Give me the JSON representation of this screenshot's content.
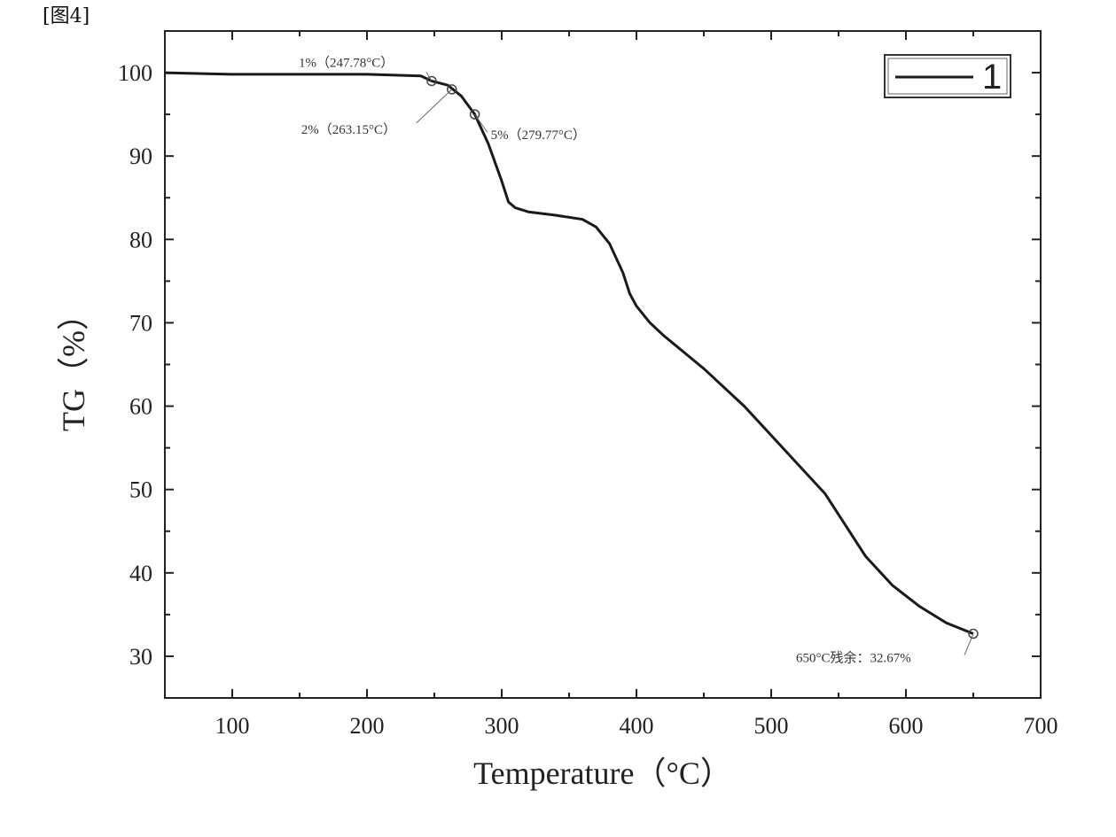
{
  "figure_label": "[图4]",
  "chart_data": {
    "type": "line",
    "title": "",
    "xlabel": "Temperature（°C）",
    "ylabel": "TG（%）",
    "xlim": [
      50,
      700
    ],
    "ylim": [
      25,
      105
    ],
    "xticks": [
      100,
      200,
      300,
      400,
      500,
      600,
      700
    ],
    "yticks": [
      30,
      40,
      50,
      60,
      70,
      80,
      90,
      100
    ],
    "grid": false,
    "legend_position": "top-right",
    "series": [
      {
        "name": "1",
        "x": [
          50,
          100,
          150,
          200,
          240,
          248,
          260,
          270,
          280,
          290,
          300,
          305,
          310,
          320,
          340,
          360,
          370,
          380,
          390,
          395,
          400,
          410,
          420,
          450,
          480,
          500,
          520,
          540,
          550,
          570,
          590,
          610,
          630,
          650
        ],
        "y": [
          100,
          99.8,
          99.8,
          99.8,
          99.6,
          99.0,
          98.5,
          97.2,
          95.0,
          91.5,
          87.0,
          84.5,
          83.8,
          83.3,
          82.9,
          82.4,
          81.5,
          79.5,
          76.0,
          73.5,
          72.0,
          70.0,
          68.5,
          64.5,
          60.0,
          56.5,
          53.0,
          49.5,
          47.0,
          42.0,
          38.5,
          36.0,
          34.0,
          32.7
        ]
      }
    ],
    "annotations": [
      {
        "text": "1%（247.78°C）",
        "x": 248,
        "y": 99.0
      },
      {
        "text": "2%（263.15°C）",
        "x": 263,
        "y": 98.0
      },
      {
        "text": "5%（279.77°C）",
        "x": 280,
        "y": 95.0
      },
      {
        "text": "650°C残余：32.67%",
        "x": 650,
        "y": 32.7
      }
    ]
  }
}
